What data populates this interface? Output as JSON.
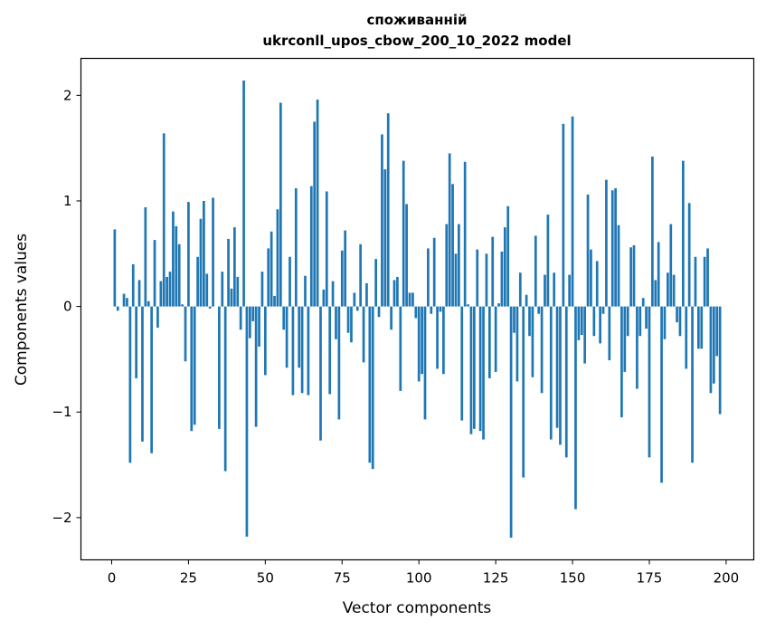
{
  "chart_data": {
    "type": "bar",
    "title_line1": "споживанній",
    "title_line2": "ukrconll_upos_cbow_200_10_2022 model",
    "xlabel": "Vector components",
    "ylabel": "Components values",
    "xlim": [
      -10,
      209
    ],
    "ylim": [
      -2.4,
      2.35
    ],
    "xticks": [
      0,
      25,
      50,
      75,
      100,
      125,
      150,
      175,
      200
    ],
    "yticks": [
      -2,
      -1,
      0,
      1,
      2
    ],
    "xtick_labels": [
      "0",
      "25",
      "50",
      "75",
      "100",
      "125",
      "150",
      "175",
      "200"
    ],
    "ytick_labels": [
      "−2",
      "−1",
      "0",
      "1",
      "2"
    ],
    "grid": false,
    "bar_color": "#1f77b4",
    "values": [
      0.0,
      0.73,
      -0.04,
      0.0,
      0.12,
      0.08,
      -1.48,
      0.4,
      -0.68,
      0.25,
      -1.28,
      0.94,
      0.05,
      -1.39,
      0.63,
      -0.2,
      0.24,
      1.64,
      0.28,
      0.33,
      0.9,
      0.76,
      0.59,
      0.02,
      -0.52,
      0.99,
      -1.18,
      -1.12,
      0.47,
      0.83,
      1.0,
      0.31,
      -0.02,
      1.03,
      0.0,
      -1.16,
      0.33,
      -1.56,
      0.64,
      0.17,
      0.75,
      0.28,
      -0.22,
      2.14,
      -2.18,
      -0.3,
      -0.14,
      -1.14,
      -0.38,
      0.33,
      -0.65,
      0.55,
      0.71,
      0.1,
      0.92,
      1.93,
      -0.22,
      -0.58,
      0.47,
      -0.84,
      1.12,
      -0.58,
      -0.82,
      0.29,
      -0.84,
      1.14,
      1.75,
      1.96,
      -1.27,
      0.16,
      1.09,
      -0.83,
      0.24,
      -0.31,
      -1.07,
      0.53,
      0.72,
      -0.25,
      -0.34,
      0.13,
      -0.04,
      0.59,
      -0.53,
      0.22,
      -1.48,
      -1.54,
      0.45,
      -0.1,
      1.63,
      1.3,
      1.83,
      -0.22,
      0.25,
      0.28,
      -0.8,
      1.38,
      0.97,
      0.13,
      0.13,
      -0.11,
      -0.71,
      -0.64,
      -1.07,
      0.55,
      -0.07,
      0.65,
      -0.59,
      -0.05,
      -0.64,
      0.78,
      1.45,
      1.16,
      0.5,
      0.78,
      -1.08,
      1.37,
      0.02,
      -1.21,
      -1.16,
      0.54,
      -1.18,
      -1.26,
      0.5,
      -0.68,
      0.66,
      -0.62,
      0.03,
      0.52,
      0.75,
      0.95,
      -2.19,
      -0.25,
      -0.71,
      0.32,
      -1.62,
      0.11,
      -0.28,
      -0.67,
      0.67,
      -0.07,
      -0.82,
      0.3,
      0.87,
      -1.26,
      0.32,
      -1.15,
      -1.31,
      1.73,
      -1.43,
      0.3,
      1.8,
      -1.92,
      -0.32,
      -0.27,
      -0.54,
      1.06,
      0.54,
      -0.28,
      0.43,
      -0.35,
      -0.07,
      1.2,
      -0.51,
      1.1,
      1.12,
      0.77,
      -1.05,
      -0.62,
      -0.28,
      0.56,
      0.58,
      -0.78,
      -0.28,
      0.08,
      -0.21,
      -1.43,
      1.42,
      0.25,
      0.61,
      -1.67,
      -0.31,
      0.32,
      0.78,
      0.3,
      -0.15,
      -0.28,
      1.38,
      -0.59,
      0.98,
      -1.48,
      0.47,
      -0.4,
      -0.4,
      0.47,
      0.55,
      -0.82,
      -0.73,
      -0.47,
      -1.02,
      0.0
    ]
  }
}
